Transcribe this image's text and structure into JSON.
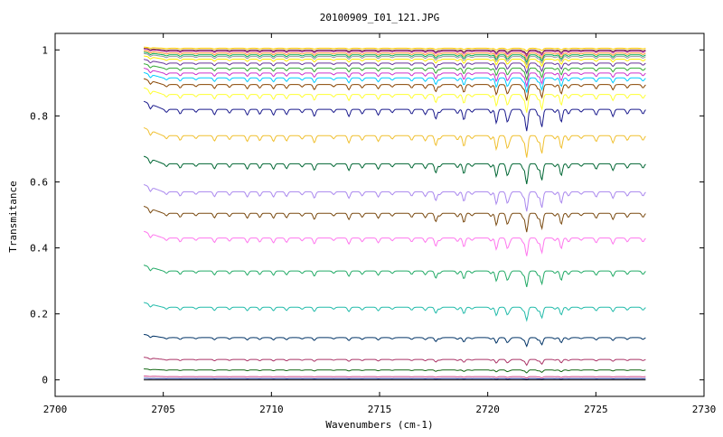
{
  "chart_data": {
    "type": "line",
    "title": "20100909_I01_121.JPG",
    "xlabel": "Wavenumbers (cm-1)",
    "ylabel": "Transmitance",
    "xlim": [
      2700,
      2730
    ],
    "ylim": [
      -0.05,
      1.05
    ],
    "x_ticks": [
      2700,
      2705,
      2710,
      2715,
      2720,
      2725,
      2730
    ],
    "y_ticks": [
      0,
      0.2,
      0.4,
      0.6,
      0.8,
      1
    ],
    "y_tick_labels": [
      "0",
      "0.2",
      "0.4",
      "0.6",
      "0.8",
      "1"
    ],
    "x_tick_labels": [
      "2700",
      "2705",
      "2710",
      "2715",
      "2720",
      "2725",
      "2730"
    ],
    "x_data_range": [
      2704.1,
      2727.3
    ],
    "grid": false,
    "legend": "none",
    "series": [
      {
        "color": "#ffcc00",
        "baseline": 1.005,
        "depth": 0.004
      },
      {
        "color": "#8b4513",
        "baseline": 1.0,
        "depth": 0.006
      },
      {
        "color": "#6600cc",
        "baseline": 0.997,
        "depth": 0.007
      },
      {
        "color": "#ff9999",
        "baseline": 0.995,
        "depth": 0.008
      },
      {
        "color": "#ff9933",
        "baseline": 0.99,
        "depth": 0.009
      },
      {
        "color": "#00aa55",
        "baseline": 0.985,
        "depth": 0.01
      },
      {
        "color": "#999999",
        "baseline": 0.98,
        "depth": 0.011
      },
      {
        "color": "#ffee00",
        "baseline": 0.972,
        "depth": 0.012
      },
      {
        "color": "#663399",
        "baseline": 0.96,
        "depth": 0.014
      },
      {
        "color": "#33aa33",
        "baseline": 0.945,
        "depth": 0.016
      },
      {
        "color": "#cc33cc",
        "baseline": 0.93,
        "depth": 0.018
      },
      {
        "color": "#00ccff",
        "baseline": 0.915,
        "depth": 0.02
      },
      {
        "color": "#884400",
        "baseline": 0.895,
        "depth": 0.022
      },
      {
        "color": "#ffff33",
        "baseline": 0.865,
        "depth": 0.025
      },
      {
        "color": "#1a1a8c",
        "baseline": 0.82,
        "depth": 0.03
      },
      {
        "color": "#f0c030",
        "baseline": 0.74,
        "depth": 0.03
      },
      {
        "color": "#006633",
        "baseline": 0.655,
        "depth": 0.028
      },
      {
        "color": "#aa88ee",
        "baseline": 0.57,
        "depth": 0.027
      },
      {
        "color": "#7a4a10",
        "baseline": 0.505,
        "depth": 0.026
      },
      {
        "color": "#ff77ee",
        "baseline": 0.43,
        "depth": 0.025
      },
      {
        "color": "#22aa66",
        "baseline": 0.33,
        "depth": 0.022
      },
      {
        "color": "#22bbaa",
        "baseline": 0.22,
        "depth": 0.018
      },
      {
        "color": "#003366",
        "baseline": 0.128,
        "depth": 0.012
      },
      {
        "color": "#aa3366",
        "baseline": 0.062,
        "depth": 0.008
      },
      {
        "color": "#116611",
        "baseline": 0.03,
        "depth": 0.004
      },
      {
        "color": "#cc4488",
        "baseline": 0.01,
        "depth": 0.002
      },
      {
        "color": "#223399",
        "baseline": 0.004,
        "depth": 0.001
      },
      {
        "color": "#000000",
        "baseline": 0.0,
        "depth": 0.0
      }
    ]
  }
}
